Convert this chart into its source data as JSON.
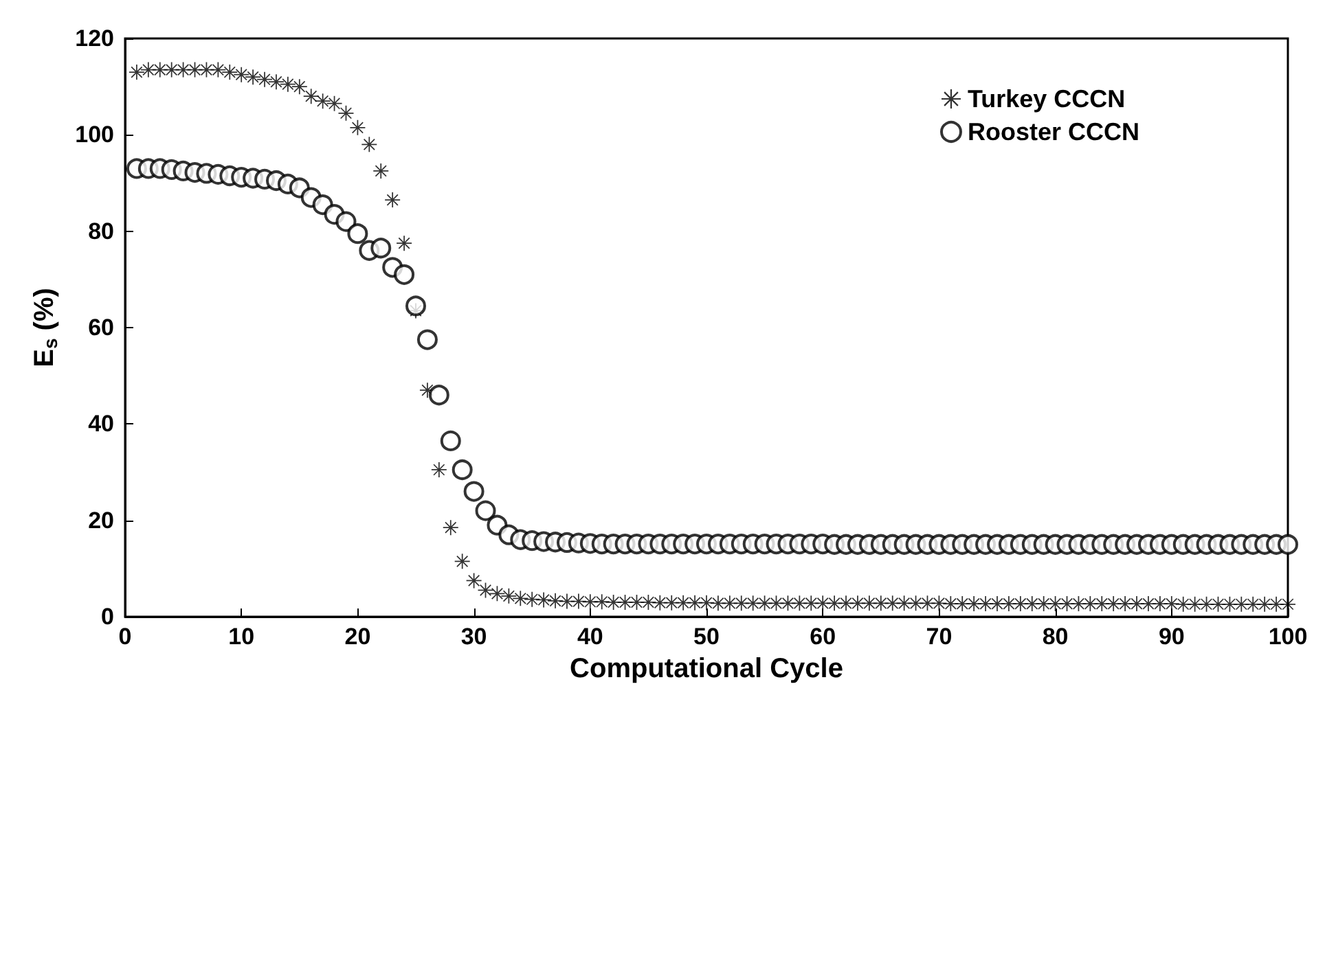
{
  "chart_data": {
    "type": "scatter",
    "xlabel": "Computational Cycle",
    "ylabel": "E$_{s}$ (%)",
    "x": [
      1,
      2,
      3,
      4,
      5,
      6,
      7,
      8,
      9,
      10,
      11,
      12,
      13,
      14,
      15,
      16,
      17,
      18,
      19,
      20,
      21,
      22,
      23,
      24,
      25,
      26,
      27,
      28,
      29,
      30,
      31,
      32,
      33,
      34,
      35,
      36,
      37,
      38,
      39,
      40,
      41,
      42,
      43,
      44,
      45,
      46,
      47,
      48,
      49,
      50,
      51,
      52,
      53,
      54,
      55,
      56,
      57,
      58,
      59,
      60,
      61,
      62,
      63,
      64,
      65,
      66,
      67,
      68,
      69,
      70,
      71,
      72,
      73,
      74,
      75,
      76,
      77,
      78,
      79,
      80,
      81,
      82,
      83,
      84,
      85,
      86,
      87,
      88,
      89,
      90,
      91,
      92,
      93,
      94,
      95,
      96,
      97,
      98,
      99,
      100
    ],
    "series": [
      {
        "name": "Turkey CCCN",
        "color": "#000000",
        "marker": "star",
        "values": [
          113,
          113.5,
          113.5,
          113.5,
          113.5,
          113.5,
          113.5,
          113.5,
          113,
          112.5,
          112,
          111.5,
          111,
          110.5,
          110,
          108,
          107,
          106.5,
          104.5,
          101.5,
          98,
          92.5,
          86.5,
          77.5,
          63.5,
          47,
          30.5,
          18.5,
          11.5,
          7.5,
          5.5,
          4.8,
          4.3,
          3.8,
          3.6,
          3.5,
          3.3,
          3.2,
          3.2,
          3.1,
          3.1,
          3.0,
          3.0,
          3.0,
          3.0,
          2.9,
          2.9,
          2.9,
          2.9,
          2.9,
          2.8,
          2.8,
          2.8,
          2.8,
          2.8,
          2.8,
          2.8,
          2.8,
          2.8,
          2.8,
          2.8,
          2.8,
          2.8,
          2.8,
          2.8,
          2.8,
          2.8,
          2.8,
          2.8,
          2.8,
          2.7,
          2.7,
          2.7,
          2.7,
          2.7,
          2.7,
          2.7,
          2.7,
          2.7,
          2.7,
          2.7,
          2.7,
          2.7,
          2.7,
          2.7,
          2.7,
          2.7,
          2.7,
          2.7,
          2.7,
          2.6,
          2.6,
          2.6,
          2.6,
          2.6,
          2.6,
          2.6,
          2.6,
          2.6,
          2.6
        ]
      },
      {
        "name": "Rooster CCCN",
        "color": "#000000",
        "marker": "circle",
        "values": [
          93,
          93,
          93,
          92.8,
          92.5,
          92.2,
          92,
          91.8,
          91.5,
          91.2,
          91,
          90.8,
          90.5,
          89.8,
          89,
          87,
          85.5,
          83.5,
          82,
          79.5,
          76,
          76.5,
          72.5,
          71,
          64.5,
          57.5,
          46,
          36.5,
          30.5,
          26,
          22,
          19,
          17,
          16,
          15.8,
          15.6,
          15.5,
          15.4,
          15.3,
          15.2,
          15.1,
          15.1,
          15.1,
          15.1,
          15.1,
          15.1,
          15.1,
          15.1,
          15.1,
          15.1,
          15.1,
          15.1,
          15.1,
          15.1,
          15.1,
          15.1,
          15.1,
          15.1,
          15.1,
          15.1,
          15,
          15,
          15,
          15,
          15,
          15,
          15,
          15,
          15,
          15,
          15,
          15,
          15,
          15,
          15,
          15,
          15,
          15,
          15,
          15,
          15,
          15,
          15,
          15,
          15,
          15,
          15,
          15,
          15,
          15,
          15,
          15,
          15,
          15,
          15,
          15,
          15,
          15,
          15,
          15
        ]
      }
    ],
    "xlim": [
      0,
      100
    ],
    "xticks": [
      0,
      10,
      20,
      30,
      40,
      50,
      60,
      70,
      80,
      90,
      100
    ],
    "ylim": [
      0,
      120
    ],
    "yticks": [
      0,
      20,
      40,
      60,
      80,
      100,
      120
    ],
    "grid": false,
    "legend": "top right"
  }
}
